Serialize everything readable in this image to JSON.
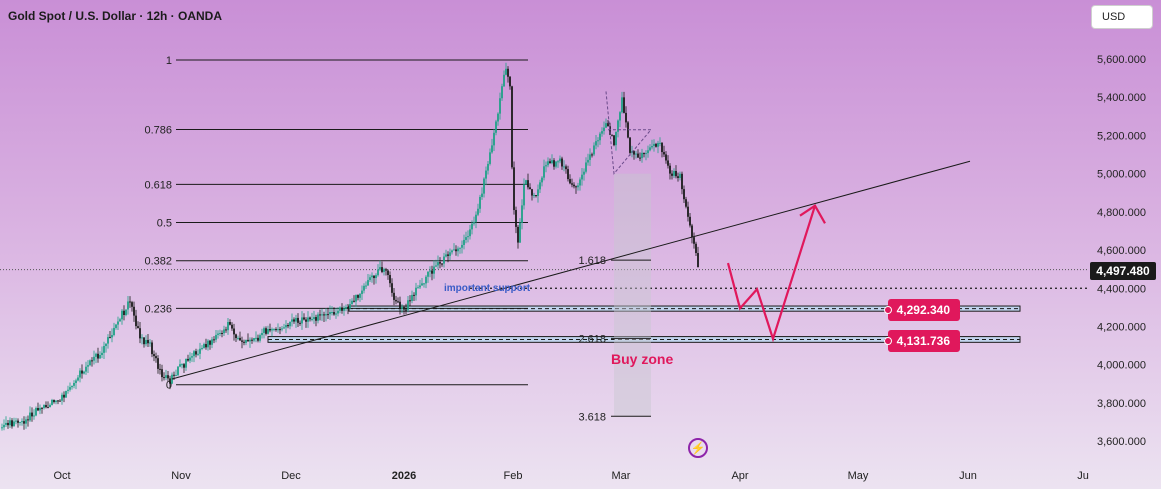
{
  "title": "Gold Spot / U.S. Dollar · 12h · OANDA",
  "currency": "USD",
  "last_price": "4,497.480",
  "zone_labels": [
    "4,292.340",
    "4,131.736"
  ],
  "annotations": {
    "support": "important support",
    "buy_zone": "Buy zone",
    "flash_icon": "lightning-icon"
  },
  "colors": {
    "up": "#1fa187",
    "down": "#1a1a1a",
    "accent": "#e0185c",
    "trendline": "#1a1a1a",
    "zone_fill": "#bcd7ee"
  },
  "chart_data": {
    "type": "candlestick",
    "symbol": "XAUUSD",
    "interval": "12h",
    "y_axis": {
      "ticks": [
        5600,
        5400,
        5200,
        5000,
        4800,
        4600,
        4400,
        4200,
        4000,
        3800,
        3600
      ],
      "ylim": [
        3570,
        5700
      ]
    },
    "x_axis": {
      "ticks": [
        "Oct",
        "Nov",
        "Dec",
        "2026",
        "Feb",
        "Mar",
        "Apr",
        "May",
        "Jun",
        "Ju"
      ]
    },
    "fibonacci": [
      {
        "level": "1",
        "price": 5595
      },
      {
        "level": "0.786",
        "price": 5231
      },
      {
        "level": "0.618",
        "price": 4944
      },
      {
        "level": "0.5",
        "price": 4744
      },
      {
        "level": "0.382",
        "price": 4544
      },
      {
        "level": "0.236",
        "price": 4295
      },
      {
        "level": "0",
        "price": 3895
      }
    ],
    "fib_extension": [
      {
        "level": "1.618",
        "price": 4547
      },
      {
        "level": "2.618",
        "price": 4138
      },
      {
        "level": "3.618",
        "price": 3730
      }
    ],
    "zones": [
      {
        "price_top": 4307,
        "price_bottom": 4280
      },
      {
        "price_top": 4147,
        "price_bottom": 4117
      }
    ],
    "support_level": 4400,
    "trendline": {
      "start": [
        "Nov",
        3925
      ],
      "end": [
        "Jun",
        5065
      ]
    },
    "projection_path": [
      4532,
      4295,
      4395,
      4135,
      4832
    ],
    "candle_closes_approx": {
      "Oct": 3690,
      "Oct-mid": 3900,
      "Oct-late": 4340,
      "Nov": 3990,
      "Nov-mid": 4150,
      "Dec": 4210,
      "Dec-mid": 4300,
      "2026": 4520,
      "Jan-mid": 4640,
      "Jan-late": 5400,
      "Feb": 4760,
      "Feb-mid": 5050,
      "Mar-early": 5330,
      "Mar-mid": 5020,
      "Mar-late": 4500
    }
  }
}
